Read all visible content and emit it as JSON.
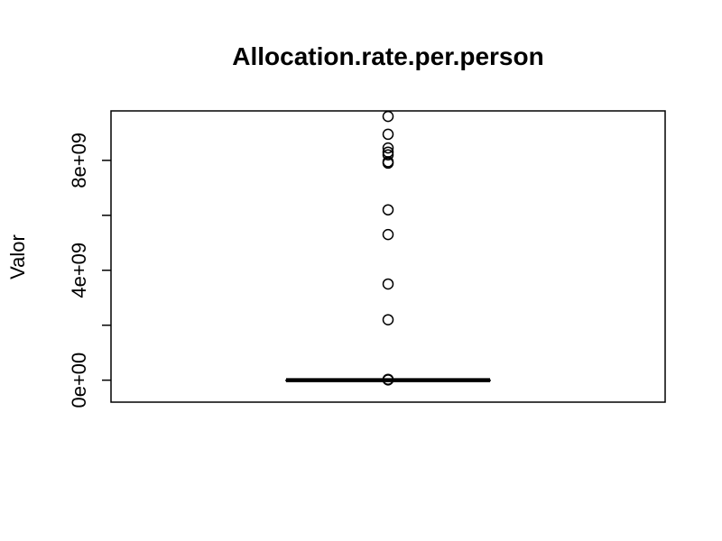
{
  "chart_data": {
    "type": "boxplot",
    "title": "Allocation.rate.per.person",
    "xlabel": "",
    "ylabel": "Valor",
    "ylim": [
      -800000000,
      9800000000
    ],
    "y_ticks": [
      0,
      2000000000,
      4000000000,
      6000000000,
      8000000000
    ],
    "y_tick_labels": [
      "0e+00",
      "",
      "4e+09",
      "",
      "8e+09"
    ],
    "box": {
      "min": 0,
      "q1": 0,
      "median": 0,
      "q3": 0,
      "max": 0
    },
    "outliers": [
      9600000000,
      8950000000,
      8450000000,
      8300000000,
      8200000000,
      7950000000,
      7900000000,
      6200000000,
      5300000000,
      3500000000,
      2200000000,
      30000000,
      10000000
    ],
    "grid": false,
    "legend": "none"
  }
}
